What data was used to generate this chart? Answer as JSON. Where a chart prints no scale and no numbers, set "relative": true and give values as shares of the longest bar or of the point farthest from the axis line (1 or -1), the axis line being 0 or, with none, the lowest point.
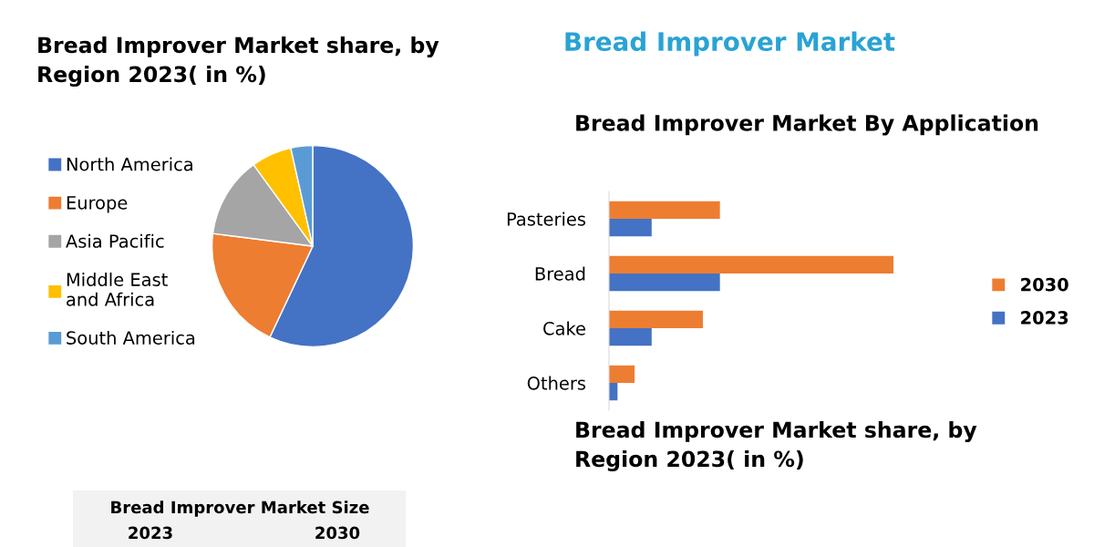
{
  "chart_data": [
    {
      "type": "pie",
      "title": "Bread Improver Market share, by Region 2023( in %)",
      "categories": [
        "North America",
        "Europe",
        "Asia Pacific",
        "Middle East and Africa",
        "South America"
      ],
      "values": [
        57,
        20,
        13,
        6.5,
        3.5
      ],
      "colors": [
        "#4472c4",
        "#ed7d31",
        "#a5a5a5",
        "#ffc000",
        "#5b9bd5"
      ],
      "legend": "left"
    },
    {
      "type": "bar",
      "title": "Bread Improver Market",
      "subtitle": "Bread Improver Market By Application",
      "orientation": "horizontal",
      "relative": true,
      "legend": "right",
      "categories": [
        "Pasteries",
        "Bread",
        "Cake",
        "Others"
      ],
      "series": [
        {
          "name": "2030",
          "color": "#ed7d31",
          "values": [
            0.39,
            1,
            0.33,
            0.09
          ]
        },
        {
          "name": "2023",
          "color": "#4472c4",
          "values": [
            0.15,
            0.39,
            0.15,
            0.03
          ]
        }
      ]
    },
    {
      "type": "other",
      "title": "Bread Improver Market share, by Region 2023( in %)"
    },
    {
      "type": "other",
      "title": "Bread Improver Market Size",
      "annotations": [
        "2023",
        "2030"
      ]
    }
  ]
}
